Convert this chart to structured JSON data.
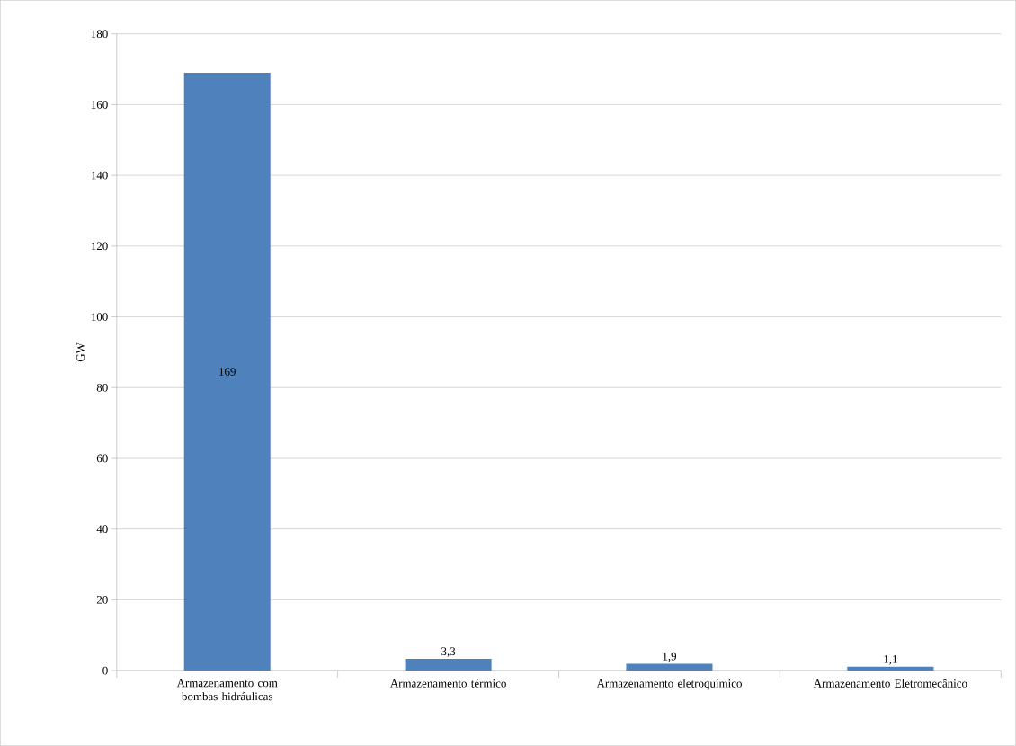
{
  "chart_data": {
    "type": "bar",
    "ylabel": "GW",
    "categories": [
      "Armazenamento com bombas hidráulicas",
      "Armazenamento térmico",
      "Armazenamento eletroquímico",
      "Armazenamento Eletromecânico"
    ],
    "values": [
      169,
      3.3,
      1.9,
      1.1
    ],
    "value_labels": [
      "169",
      "3,3",
      "1,9",
      "1,1"
    ],
    "color": "#4f81bd",
    "ylim": [
      0,
      180
    ],
    "yticks": [
      0,
      20,
      40,
      60,
      80,
      100,
      120,
      140,
      160,
      180
    ],
    "grid": "y"
  }
}
